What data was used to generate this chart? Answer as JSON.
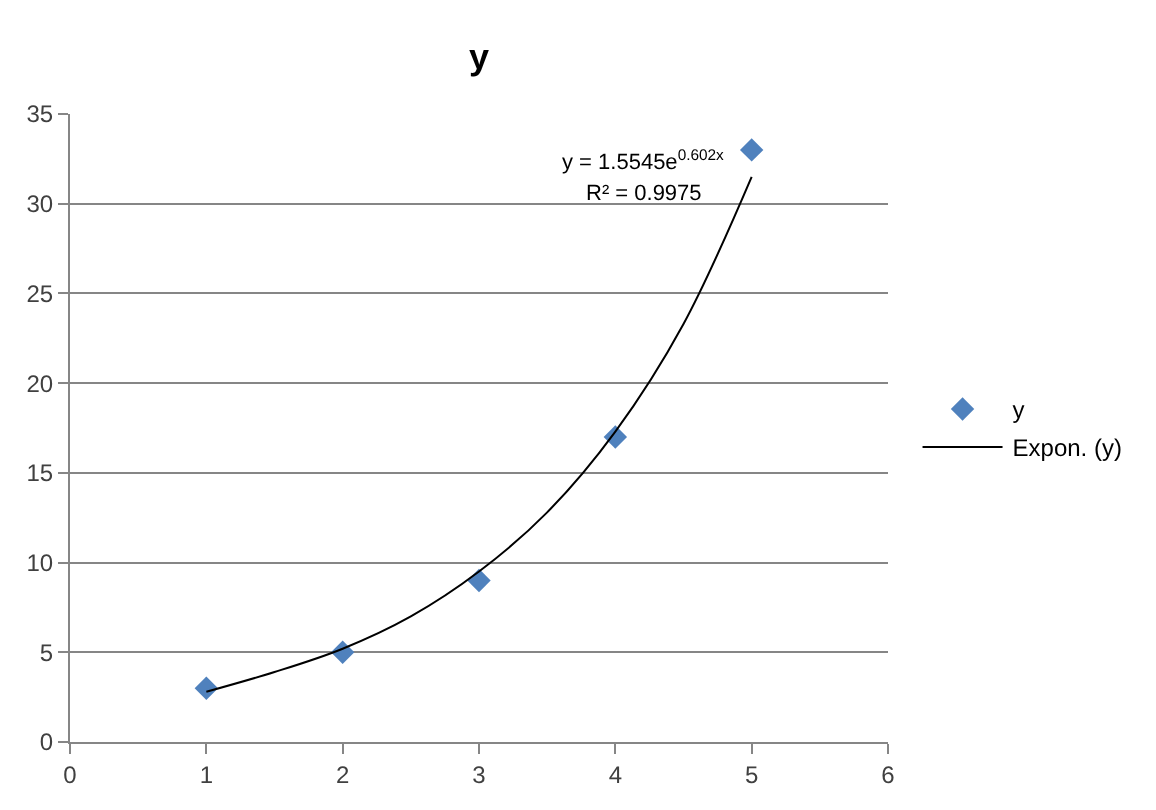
{
  "chart_data": {
    "type": "scatter",
    "title": "y",
    "series": [
      {
        "name": "y",
        "color": "#4f81bd",
        "x": [
          1,
          2,
          3,
          4,
          5
        ],
        "values": [
          3,
          5,
          9,
          17,
          33
        ]
      },
      {
        "name": "Expon. (y)",
        "type": "line",
        "marker": "none",
        "color": "#000000",
        "x": [
          1,
          1.5,
          2,
          2.5,
          3,
          3.5,
          4,
          4.5,
          5
        ],
        "values": [
          2.8,
          3.9,
          5.2,
          7.0,
          9.5,
          12.8,
          17.3,
          23.3,
          31.5
        ]
      }
    ],
    "xlim": [
      0,
      6
    ],
    "xticks": [
      0,
      1,
      2,
      3,
      4,
      5,
      6
    ],
    "ylim": [
      0,
      35
    ],
    "yticks": [
      0,
      5,
      10,
      15,
      20,
      25,
      30,
      35
    ],
    "annotations": [
      "y = 1.5545e$^{0.602x}$",
      "R² = 0.9975"
    ],
    "grid": "y",
    "legend": "right",
    "marker": "diamond",
    "line_style": "solid"
  }
}
